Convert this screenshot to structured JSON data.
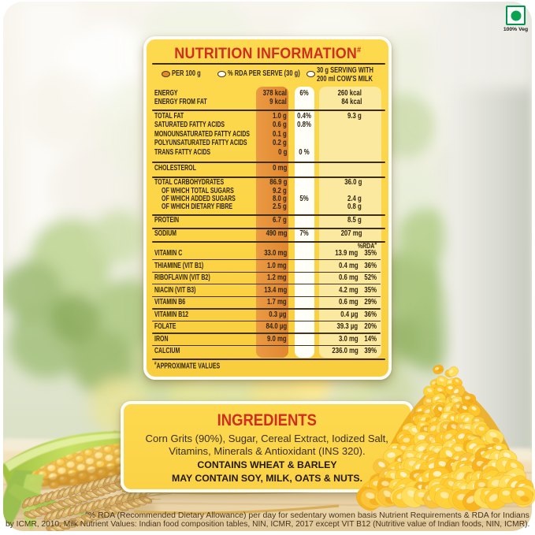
{
  "veg_badge": {
    "label": "100% Veg"
  },
  "nutrition_panel": {
    "title": "NUTRITION INFORMATION",
    "title_sup": "#",
    "legend": [
      {
        "swatch": "orange-dot",
        "label": "PER 100 g"
      },
      {
        "swatch": "white-dot",
        "label": "% RDA PER SERVE (30 g)"
      },
      {
        "swatch": "white-dot",
        "label": "30 g SERVING WITH",
        "label2": "200 ml COW'S MILK"
      }
    ],
    "main_rows": [
      {
        "label": "ENERGY",
        "per100": "378 kcal",
        "rda": "6%",
        "milk": "260 kcal"
      },
      {
        "label": "ENERGY FROM FAT",
        "per100": "9 kcal",
        "milk": "84 kcal"
      },
      {
        "label": "TOTAL FAT",
        "per100": "1.0 g",
        "rda": "0.4%",
        "milk": "9.3 g"
      },
      {
        "label": "SATURATED FATTY ACIDS",
        "per100": "0.6 g",
        "rda": "0.8%"
      },
      {
        "label": "MONOUNSATURATED FATTY ACIDS",
        "per100": "0.1 g"
      },
      {
        "label": "POLYUNSATURATED FATTY ACIDS",
        "per100": "0.2 g"
      },
      {
        "label": "TRANS FATTY ACIDS",
        "per100": "0 g",
        "rda": "0 %"
      },
      {
        "label": "CHOLESTEROL",
        "per100": "0 mg"
      },
      {
        "label": "TOTAL CARBOHYDRATES",
        "per100": "86.9 g",
        "milk": "36.0 g"
      },
      {
        "label": "OF WHICH TOTAL SUGARS",
        "indent": true,
        "per100": "9.2 g"
      },
      {
        "label": "OF WHICH ADDED SUGARS",
        "indent": true,
        "per100": "8.0 g",
        "rda": "5%",
        "milk": "2.4 g"
      },
      {
        "label": "OF WHICH DIETARY FIBRE",
        "indent": true,
        "per100": "2.5 g",
        "milk": "0.8 g"
      },
      {
        "label": "PROTEIN",
        "per100": "6.7 g",
        "milk": "8.5 g"
      },
      {
        "label": "SODIUM",
        "per100": "490 mg",
        "rda": "7%",
        "milk": "207 mg"
      }
    ],
    "rda_col_header": "%RDA",
    "rda_col_header_sup": "#",
    "vitamin_rows": [
      {
        "label": "VITAMIN C",
        "per100": "33.0 mg",
        "milk": "13.9 mg",
        "pct": "35%"
      },
      {
        "label": "THIAMINE (VIT B1)",
        "per100": "1.0 mg",
        "milk": "0.4 mg",
        "pct": "36%"
      },
      {
        "label": "RIBOFLAVIN (VIT B2)",
        "per100": "1.2 mg",
        "milk": "0.6 mg",
        "pct": "52%"
      },
      {
        "label": "NIACIN (VIT B3)",
        "per100": "13.4 mg",
        "milk": "4.2 mg",
        "pct": "35%"
      },
      {
        "label": "VITAMIN B6",
        "per100": "1.7 mg",
        "milk": "0.6 mg",
        "pct": "29%"
      },
      {
        "label": "VITAMIN B12",
        "per100": "0.3 µg",
        "milk": "0.4 µg",
        "pct": "36%"
      },
      {
        "label": "FOLATE",
        "per100": "84.0 µg",
        "milk": "39.3 µg",
        "pct": "20%"
      },
      {
        "label": "IRON",
        "per100": "9.0 mg",
        "milk": "3.0 mg",
        "pct": "14%"
      },
      {
        "label": "CALCIUM",
        "milk": "236.0 mg",
        "pct": "39%"
      }
    ],
    "approx_sup": "#",
    "approx_note": "APPROXIMATE VALUES"
  },
  "ingredients_panel": {
    "title": "INGREDIENTS",
    "body_line1": "Corn Grits (90%), Sugar, Cereal Extract, Iodized Salt,",
    "body_line2": "Vitamins, Minerals & Antioxidant (INS 320).",
    "allergen_line1": "CONTAINS WHEAT & BARLEY",
    "allergen_line2": "MAY CONTAIN SOY, MILK, OATS & NUTS."
  },
  "footnote": {
    "sup": "#",
    "line1": "% RDA (Recommended Dietary Allowance) per day for sedentary women basis Nutrient Requirements & RDA for Indians",
    "line2": "by ICMR, 2010. Milk Nutrient Values: Indian food composition tables, NIN, ICMR, 2017 except VIT B12 (Nutritive value of Indian foods, NIN, ICMR)."
  },
  "colors": {
    "panel_yellow": "#fcd64a",
    "per100_band_orange": "#e58e37",
    "rda_band_white": "#fffef7",
    "milk_band_cream": "#fce9a0",
    "heading_red": "#d02f20",
    "text_dark": "#372c19",
    "veg_mark_green": "#00944c"
  }
}
